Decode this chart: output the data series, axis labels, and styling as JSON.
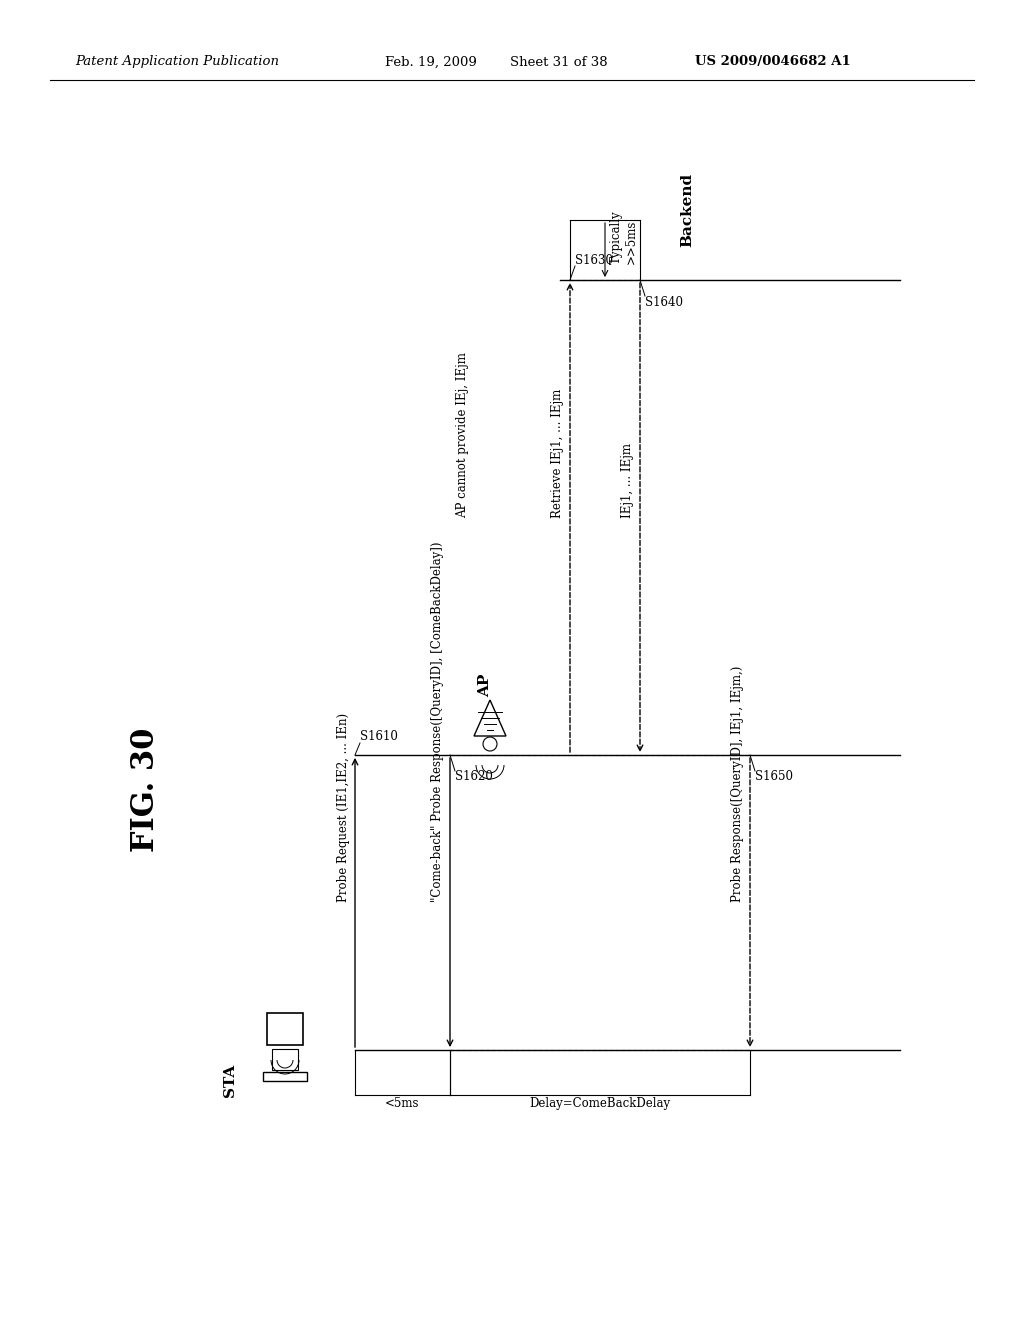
{
  "header_left": "Patent Application Publication",
  "header_mid": "Feb. 19, 2009  Sheet 31 of 38",
  "header_right": "US 2009/0046682 A1",
  "fig_label": "FIG. 30",
  "background_color": "#ffffff",
  "sta_label": "STA",
  "ap_label": "AP",
  "be_label": "Backend",
  "msg_labels": {
    "probe_req": "Probe Request (IE1,IE2, ... IEn)",
    "come_back": "\"Come-back\" Probe Response([QueryID], [ComeBackDelay])",
    "retrieve": "Retrieve IEj1, ... IEjm",
    "iej_back": "IEj1, ... IEjm",
    "probe_resp": "Probe Response([QueryID], IEj1, IEjm,)",
    "ap_cannot": "AP cannot provide IEj, IEjm"
  },
  "step_labels": [
    "S1610",
    "S1620",
    "S1630",
    "S1640",
    "S1650"
  ],
  "annotations": {
    "lt5ms": "<5ms",
    "delay": "Delay=ComeBackDelay",
    "typically": "Typically\n>>5ms"
  }
}
